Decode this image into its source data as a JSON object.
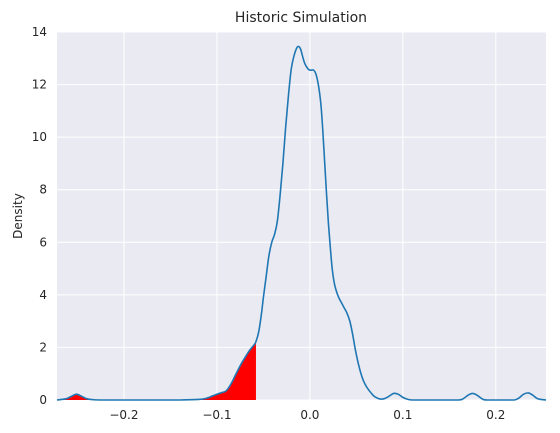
{
  "chart_data": {
    "type": "area",
    "title": "Historic Simulation",
    "xlabel": "",
    "ylabel": "Density",
    "xlim": [
      -0.272,
      0.254
    ],
    "ylim": [
      0,
      14
    ],
    "grid": true,
    "xticks": [
      -0.2,
      -0.1,
      0.0,
      0.1,
      0.2
    ],
    "xtick_labels": [
      "−0.2",
      "−0.1",
      "0.0",
      "0.1",
      "0.2"
    ],
    "yticks": [
      0,
      2,
      4,
      6,
      8,
      10,
      12,
      14
    ],
    "ytick_labels": [
      "0",
      "2",
      "4",
      "6",
      "8",
      "10",
      "12",
      "14"
    ],
    "line_color": "#1f77b4",
    "fill_color": "#ff0000",
    "fill_threshold_x": -0.058,
    "series": [
      {
        "x": [
          -0.272,
          -0.262,
          -0.256,
          -0.251,
          -0.246,
          -0.24,
          -0.232,
          -0.22,
          -0.2,
          -0.18,
          -0.16,
          -0.14,
          -0.12,
          -0.112,
          -0.105,
          -0.1,
          -0.095,
          -0.09,
          -0.085,
          -0.08,
          -0.075,
          -0.07,
          -0.065,
          -0.06,
          -0.058,
          -0.055,
          -0.052,
          -0.05,
          -0.047,
          -0.044,
          -0.041,
          -0.038,
          -0.035,
          -0.032,
          -0.029,
          -0.026,
          -0.023,
          -0.02,
          -0.017,
          -0.014,
          -0.012,
          -0.01,
          -0.008,
          -0.006,
          -0.004,
          -0.002,
          0.0,
          0.002,
          0.004,
          0.006,
          0.008,
          0.01,
          0.012,
          0.014,
          0.016,
          0.018,
          0.02,
          0.022,
          0.024,
          0.026,
          0.028,
          0.031,
          0.034,
          0.037,
          0.04,
          0.043,
          0.046,
          0.049,
          0.052,
          0.055,
          0.058,
          0.061,
          0.064,
          0.067,
          0.07,
          0.075,
          0.08,
          0.085,
          0.09,
          0.095,
          0.1,
          0.105,
          0.11,
          0.115,
          0.12,
          0.14,
          0.16,
          0.165,
          0.17,
          0.175,
          0.18,
          0.185,
          0.19,
          0.21,
          0.22,
          0.225,
          0.23,
          0.235,
          0.24,
          0.245,
          0.254
        ],
        "y": [
          0.0,
          0.05,
          0.15,
          0.22,
          0.15,
          0.05,
          0.01,
          0.0,
          0.0,
          0.0,
          0.0,
          0.0,
          0.02,
          0.06,
          0.15,
          0.22,
          0.28,
          0.35,
          0.6,
          0.95,
          1.3,
          1.6,
          1.88,
          2.1,
          2.22,
          2.6,
          3.3,
          3.9,
          4.7,
          5.5,
          6.0,
          6.3,
          6.8,
          7.8,
          9.0,
          10.4,
          11.6,
          12.6,
          13.1,
          13.4,
          13.45,
          13.35,
          13.1,
          12.85,
          12.7,
          12.6,
          12.55,
          12.55,
          12.55,
          12.45,
          12.2,
          11.8,
          11.2,
          10.2,
          9.0,
          7.8,
          6.7,
          5.8,
          5.0,
          4.5,
          4.2,
          3.9,
          3.7,
          3.5,
          3.3,
          3.0,
          2.5,
          1.9,
          1.4,
          1.0,
          0.7,
          0.5,
          0.35,
          0.22,
          0.12,
          0.04,
          0.05,
          0.14,
          0.25,
          0.22,
          0.1,
          0.03,
          0.0,
          0.0,
          0.0,
          0.0,
          0.0,
          0.05,
          0.18,
          0.25,
          0.18,
          0.05,
          0.0,
          0.0,
          0.0,
          0.08,
          0.22,
          0.27,
          0.18,
          0.05,
          0.0
        ]
      }
    ]
  }
}
